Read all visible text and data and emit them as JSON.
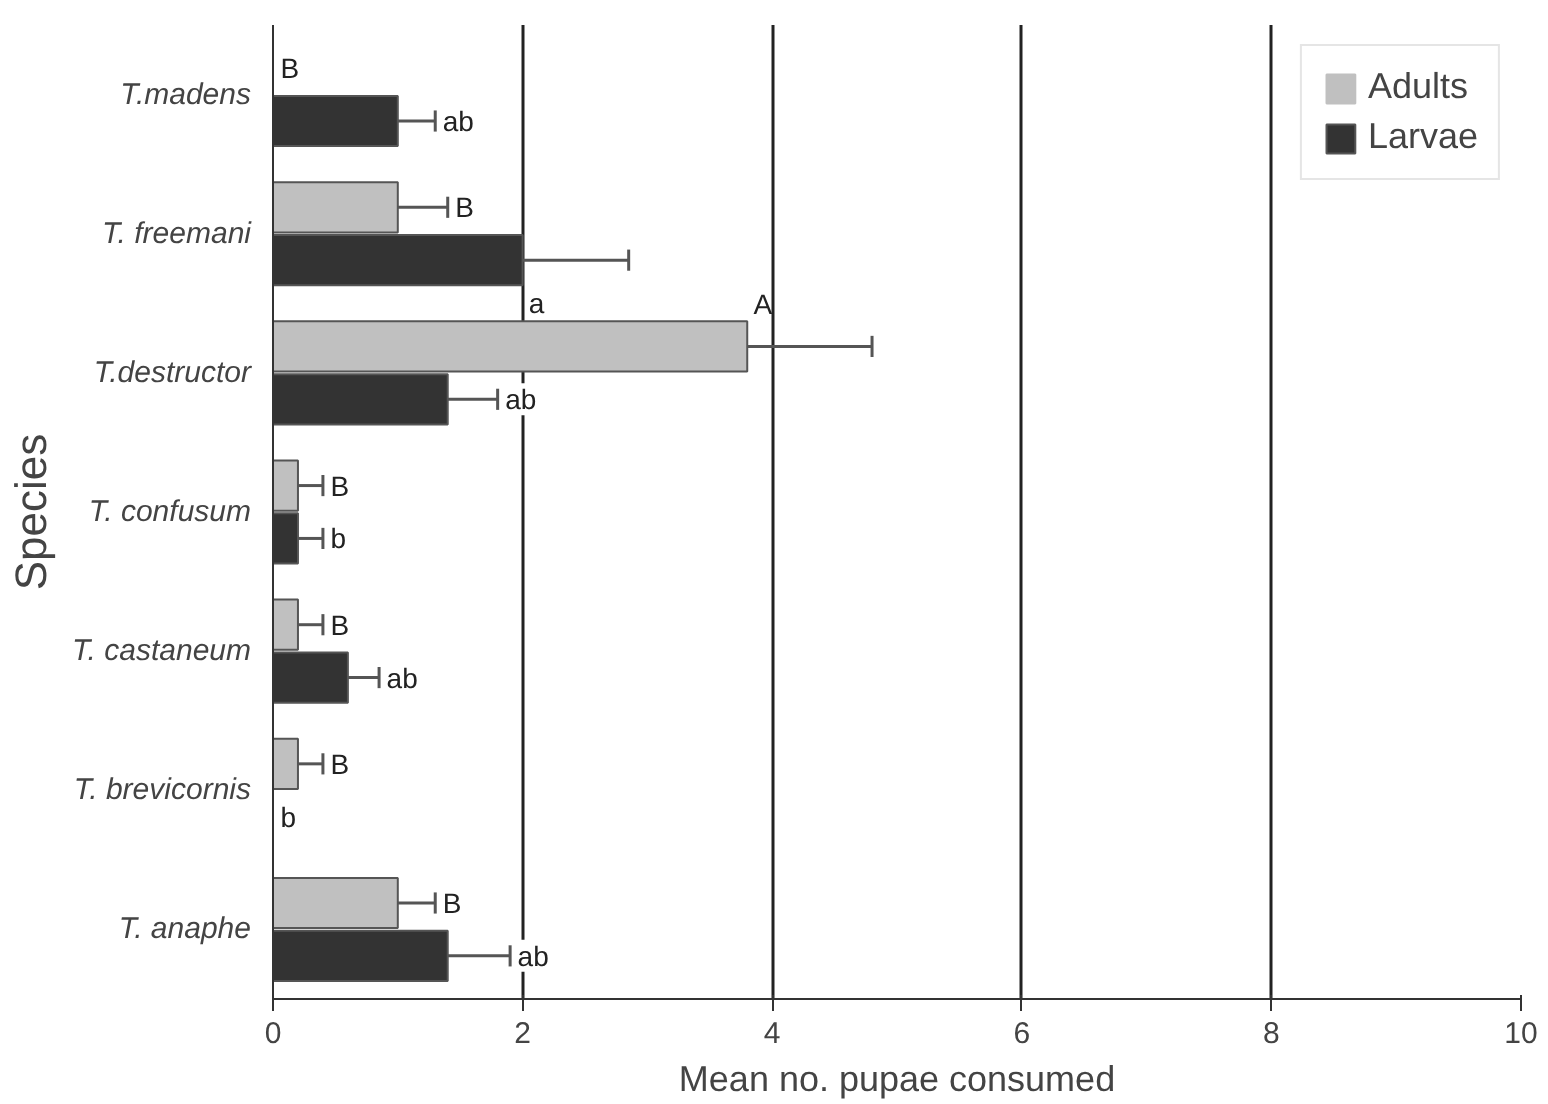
{
  "chart_data": {
    "type": "bar",
    "orientation": "horizontal",
    "categories": [
      "T.madens",
      "T. freemani",
      "T.destructor",
      "T. confusum",
      "T. castaneum",
      "T. brevicornis",
      "T. anaphe"
    ],
    "series": [
      {
        "name": "Adults",
        "color": "#c0c0c0",
        "values": [
          0,
          1.0,
          3.8,
          0.2,
          0.2,
          0.2,
          1.0
        ],
        "errors": [
          null,
          0.4,
          1.0,
          0.2,
          0.2,
          0.2,
          0.3
        ]
      },
      {
        "name": "Larvae",
        "color": "#333333",
        "values": [
          1.0,
          2.0,
          1.4,
          0.2,
          0.6,
          0,
          1.4
        ],
        "errors": [
          0.3,
          0.85,
          0.4,
          0.2,
          0.25,
          null,
          0.5
        ]
      }
    ],
    "annotations": [
      {
        "text": "B",
        "x": 0,
        "y": "T.madens"
      },
      {
        "text": "ab",
        "x": 1.0,
        "y": "T.madens"
      },
      {
        "text": "B",
        "x": 1.0,
        "y": "T. freemani"
      },
      {
        "text": "a",
        "x": 2.0,
        "y": "T. freemani"
      },
      {
        "text": "A",
        "x": 3.8,
        "y": "T.destructor"
      },
      {
        "text": "ab",
        "x": 1.4,
        "y": "T.destructor"
      },
      {
        "text": "B",
        "x": 0.2,
        "y": "T. confusum"
      },
      {
        "text": "b",
        "x": 0.2,
        "y": "T. confusum"
      },
      {
        "text": "B",
        "x": 0.2,
        "y": "T. castaneum"
      },
      {
        "text": "ab",
        "x": 0.6,
        "y": "T. castaneum"
      },
      {
        "text": "B",
        "x": 0.2,
        "y": "T. brevicornis"
      },
      {
        "text": "b",
        "x": 0,
        "y": "T. brevicornis"
      },
      {
        "text": "B",
        "x": 1.0,
        "y": "T. anaphe"
      },
      {
        "text": "ab",
        "x": 1.4,
        "y": "T. anaphe"
      }
    ],
    "xlim": [
      0,
      10
    ],
    "xticks": [
      0,
      2,
      4,
      6,
      8,
      10
    ],
    "xlabel": "Mean no. pupae consumed",
    "ylabel": "Species",
    "grid": "x",
    "legend": "top right"
  }
}
